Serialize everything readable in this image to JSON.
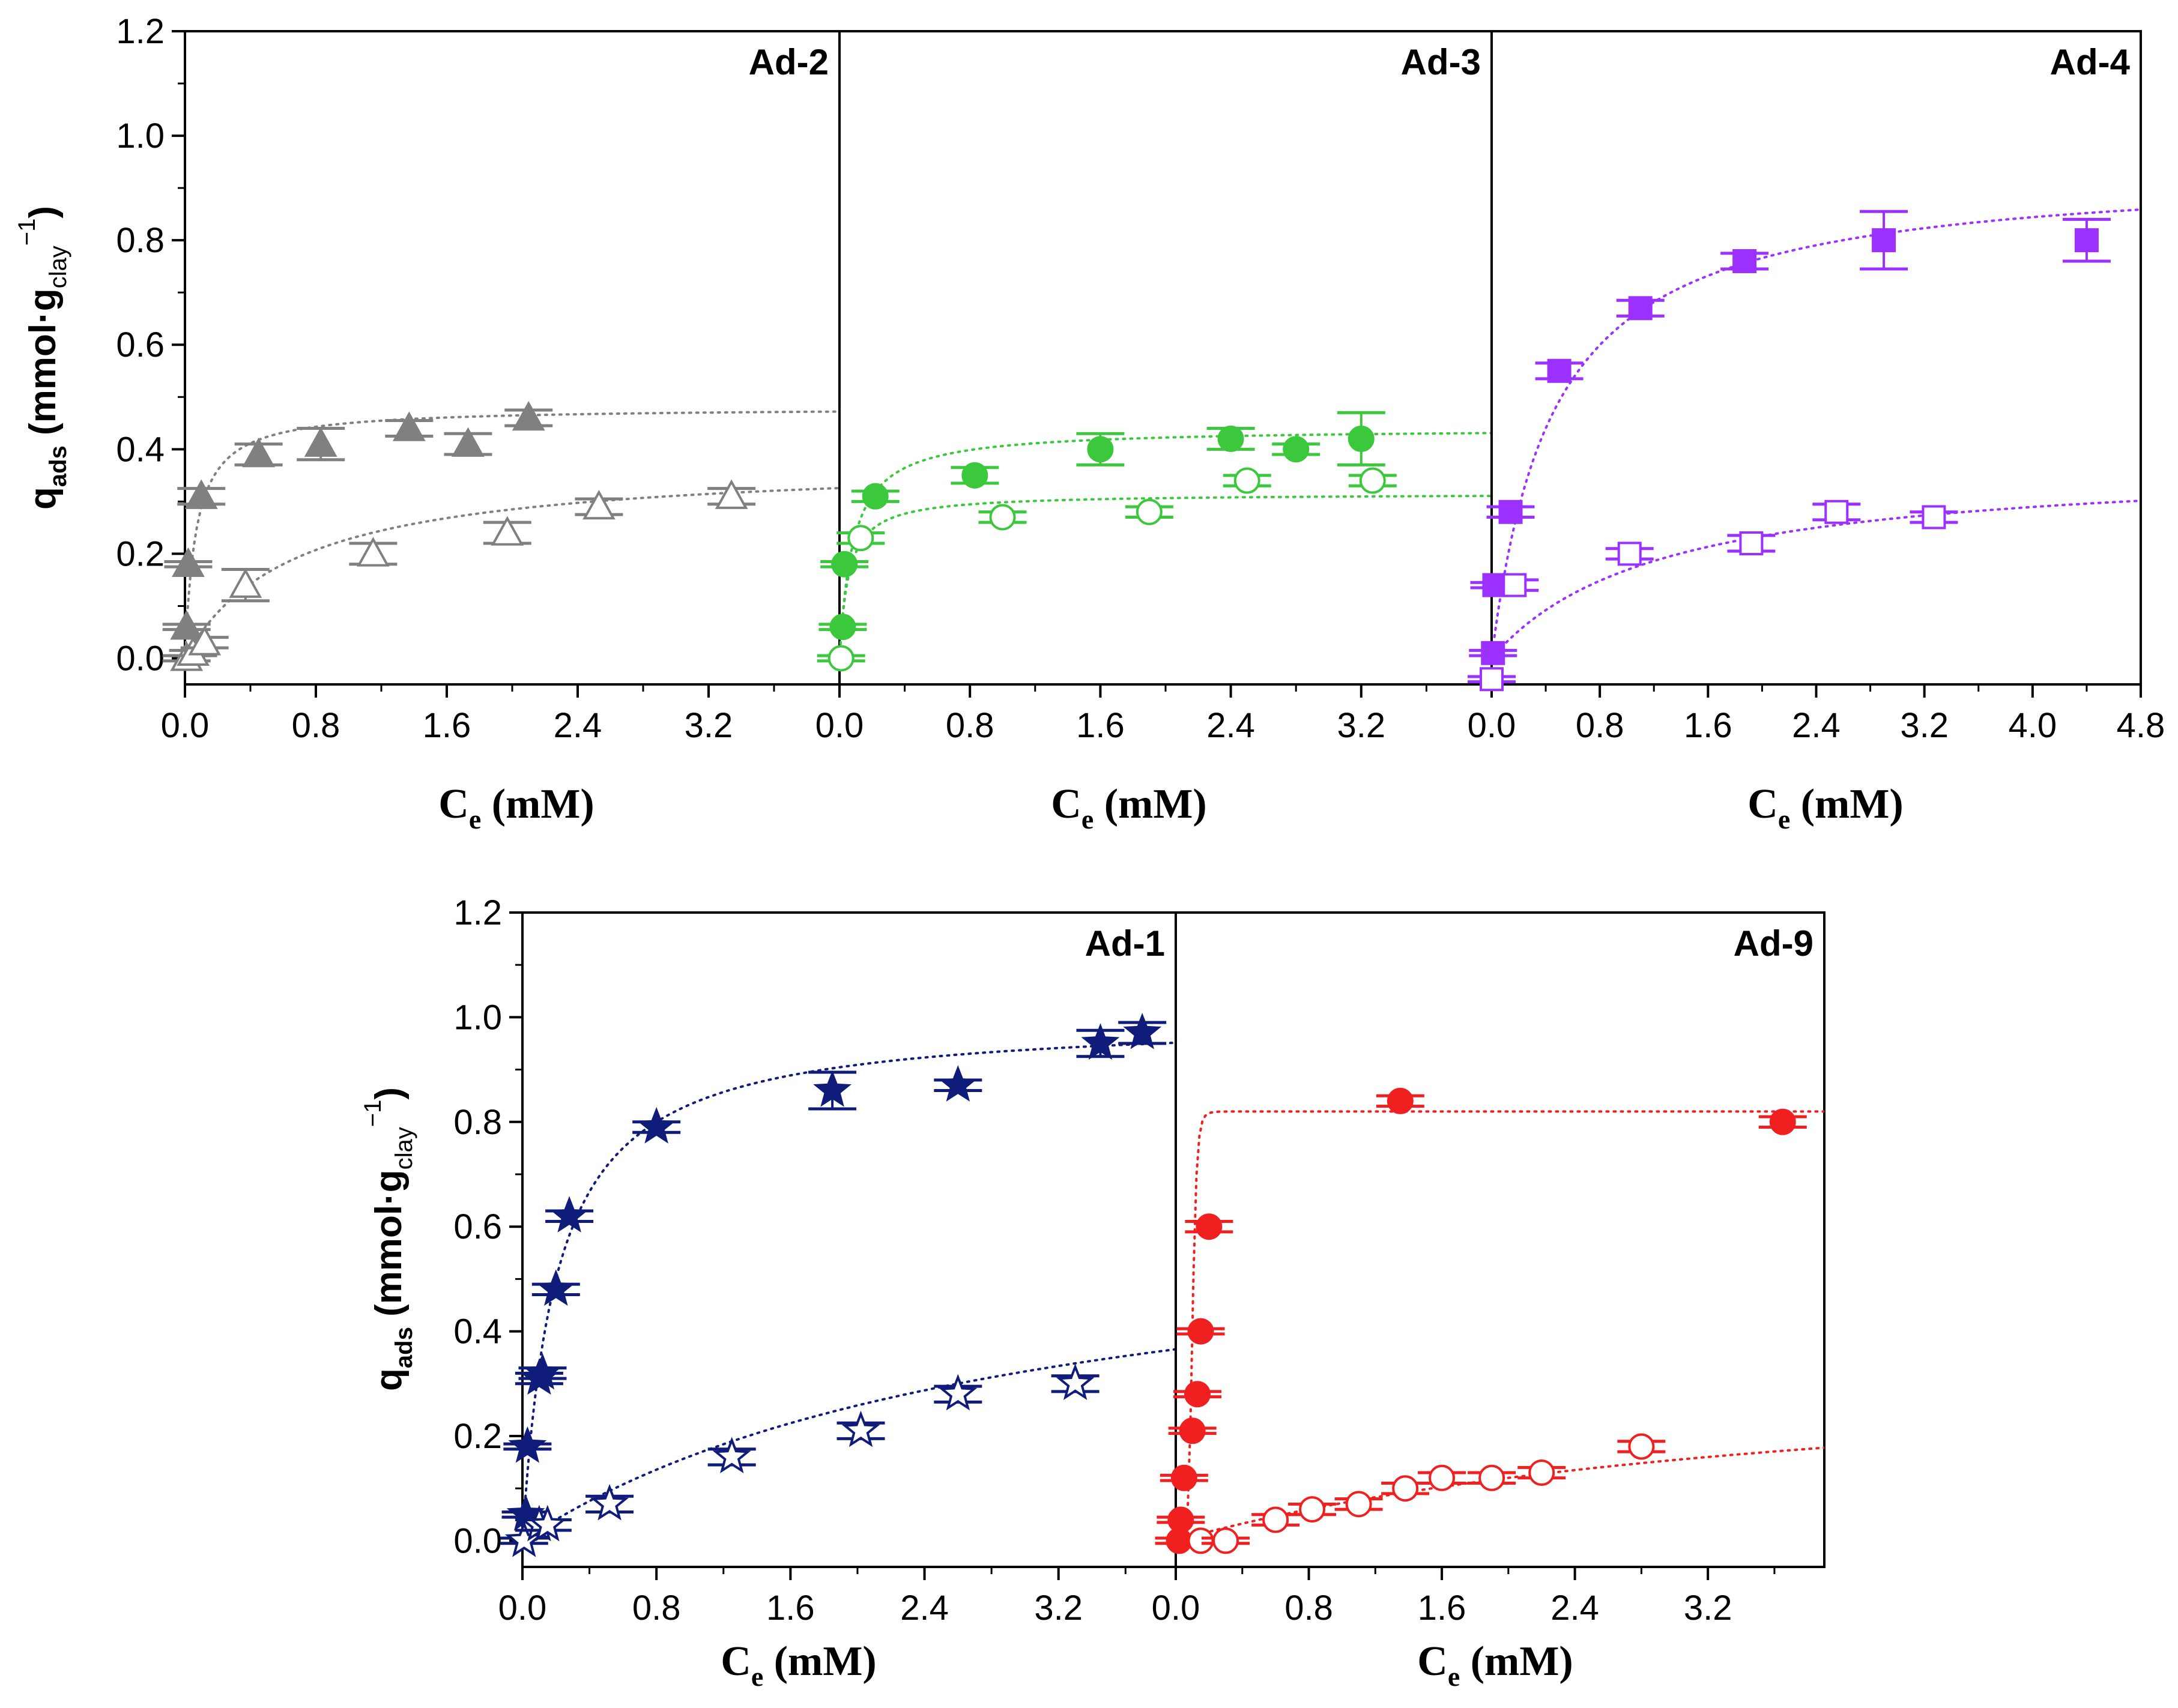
{
  "figure": {
    "y_axis_label": {
      "main": "q",
      "sub": "ads",
      "unit_prefix": " (mmol·g",
      "unit_sub": "clay",
      "unit_sup": "−1",
      "unit_suffix": ")"
    },
    "x_axis_label": {
      "main": "C",
      "sub": "e",
      "unit": " (mM)"
    }
  },
  "chart_data": [
    {
      "type": "scatter",
      "title": "Ad-2",
      "xlabel": "Ce (mM)",
      "ylabel": "qads (mmol·gclay−1)",
      "xlim": [
        0,
        4.0
      ],
      "ylim": [
        -0.05,
        1.2
      ],
      "x_ticks": [
        "0.0",
        "0.8",
        "1.6",
        "2.4",
        "3.2"
      ],
      "y_ticks": [
        "0.0",
        "0.2",
        "0.4",
        "0.6",
        "0.8",
        "1.0",
        "1.2"
      ],
      "color": "#808080",
      "marker": "triangle",
      "series": [
        {
          "fill": "filled",
          "fit": {
            "qmax": 0.48,
            "K": 15
          },
          "x": [
            0.01,
            0.02,
            0.1,
            0.45,
            0.83,
            1.37,
            1.73,
            2.1
          ],
          "y": [
            0.06,
            0.18,
            0.31,
            0.39,
            0.41,
            0.44,
            0.41,
            0.46
          ],
          "err_y": [
            0.005,
            0.005,
            0.015,
            0.02,
            0.03,
            0.015,
            0.02,
            0.015
          ]
        },
        {
          "fill": "open",
          "fit": {
            "qmax": 0.38,
            "K": 1.5
          },
          "x": [
            0.01,
            0.05,
            0.12,
            0.37,
            1.15,
            1.97,
            2.53,
            3.34
          ],
          "y": [
            0.0,
            0.01,
            0.03,
            0.14,
            0.2,
            0.24,
            0.29,
            0.31
          ],
          "err_y": [
            0.005,
            0.005,
            0.01,
            0.03,
            0.02,
            0.02,
            0.015,
            0.015
          ]
        }
      ]
    },
    {
      "type": "scatter",
      "title": "Ad-3",
      "xlabel": "Ce (mM)",
      "ylabel": "qads (mmol·gclay−1)",
      "xlim": [
        0,
        4.0
      ],
      "ylim": [
        -0.05,
        1.2
      ],
      "x_ticks": [
        "0.0",
        "0.8",
        "1.6",
        "2.4",
        "3.2"
      ],
      "color": "#3CC83C",
      "marker": "circle",
      "series": [
        {
          "fill": "filled",
          "fit": {
            "qmax": 0.44,
            "K": 12
          },
          "x": [
            0.02,
            0.03,
            0.22,
            0.83,
            1.6,
            2.4,
            2.8,
            3.2
          ],
          "y": [
            0.06,
            0.18,
            0.31,
            0.35,
            0.4,
            0.42,
            0.4,
            0.42
          ],
          "err_y": [
            0.005,
            0.005,
            0.01,
            0.015,
            0.03,
            0.02,
            0.01,
            0.05
          ]
        },
        {
          "fill": "open",
          "fit": {
            "qmax": 0.315,
            "K": 18
          },
          "x": [
            0.01,
            0.13,
            1.0,
            1.9,
            2.5,
            3.27
          ],
          "y": [
            0.0,
            0.23,
            0.27,
            0.28,
            0.34,
            0.34
          ],
          "err_y": [
            0.005,
            0.01,
            0.01,
            0.01,
            0.01,
            0.01
          ]
        }
      ]
    },
    {
      "type": "scatter",
      "title": "Ad-4",
      "xlabel": "Ce (mM)",
      "ylabel": "qads (mmol·gclay−1)",
      "xlim": [
        0,
        4.8
      ],
      "ylim": [
        -0.05,
        1.2
      ],
      "x_ticks": [
        "0.0",
        "0.8",
        "1.6",
        "2.4",
        "3.2",
        "4.0",
        "4.8"
      ],
      "color": "#9B30FF",
      "marker": "square",
      "series": [
        {
          "fill": "filled",
          "fit": {
            "qmax": 0.94,
            "K": 2.2
          },
          "x": [
            0.01,
            0.02,
            0.14,
            0.5,
            1.1,
            1.87,
            2.9,
            4.4
          ],
          "y": [
            0.01,
            0.14,
            0.28,
            0.55,
            0.67,
            0.76,
            0.8,
            0.8
          ],
          "err_y": [
            0.005,
            0.005,
            0.01,
            0.015,
            0.015,
            0.015,
            0.055,
            0.04
          ]
        },
        {
          "fill": "open",
          "fit": {
            "qmax": 0.38,
            "K": 0.8
          },
          "x": [
            0.0,
            0.17,
            1.02,
            1.92,
            2.55,
            3.27
          ],
          "y": [
            -0.04,
            0.14,
            0.2,
            0.22,
            0.28,
            0.27
          ],
          "err_y": [
            0.005,
            0.01,
            0.01,
            0.015,
            0.015,
            0.01
          ]
        }
      ]
    },
    {
      "type": "scatter",
      "title": "Ad-1",
      "xlabel": "Ce (mM)",
      "ylabel": "qads (mmol·gclay−1)",
      "xlim": [
        0,
        3.9
      ],
      "ylim": [
        -0.05,
        1.2
      ],
      "x_ticks": [
        "0.0",
        "0.8",
        "1.6",
        "2.4",
        "3.2"
      ],
      "y_ticks": [
        "0.0",
        "0.2",
        "0.4",
        "0.6",
        "0.8",
        "1.0",
        "1.2"
      ],
      "color": "#101C7A",
      "marker": "star",
      "series": [
        {
          "fill": "filled",
          "fit": {
            "qmax": 1.0,
            "K": 5
          },
          "x": [
            0.02,
            0.03,
            0.1,
            0.12,
            0.2,
            0.28,
            0.8,
            1.85,
            2.6,
            3.45,
            3.7
          ],
          "y": [
            0.05,
            0.18,
            0.31,
            0.32,
            0.48,
            0.62,
            0.79,
            0.86,
            0.87,
            0.95,
            0.97
          ],
          "err_y": [
            0.005,
            0.005,
            0.01,
            0.01,
            0.01,
            0.01,
            0.01,
            0.035,
            0.01,
            0.025,
            0.02
          ]
        },
        {
          "fill": "open",
          "fit": {
            "qmax": 0.65,
            "K": 0.33
          },
          "x": [
            0.01,
            0.1,
            0.15,
            0.52,
            1.25,
            2.02,
            2.6,
            3.3
          ],
          "y": [
            0.0,
            0.03,
            0.03,
            0.07,
            0.16,
            0.21,
            0.28,
            0.3
          ],
          "err_y": [
            0.005,
            0.01,
            0.01,
            0.015,
            0.015,
            0.015,
            0.015,
            0.015
          ]
        }
      ]
    },
    {
      "type": "scatter",
      "title": "Ad-9",
      "xlabel": "Ce (mM)",
      "ylabel": "qads (mmol·gclay−1)",
      "xlim": [
        0,
        3.9
      ],
      "ylim": [
        -0.05,
        1.2
      ],
      "x_ticks": [
        "0.0",
        "0.8",
        "1.6",
        "2.4",
        "3.2"
      ],
      "color": "#F02020",
      "marker": "circle",
      "series": [
        {
          "fill": "filled",
          "fit": {
            "qmax": 0.82,
            "K": 10,
            "n": 8
          },
          "x": [
            0.02,
            0.03,
            0.05,
            0.1,
            0.13,
            0.15,
            0.2,
            1.35,
            3.65
          ],
          "y": [
            0.0,
            0.04,
            0.12,
            0.21,
            0.28,
            0.4,
            0.6,
            0.84,
            0.8
          ],
          "err_y": [
            0.005,
            0.005,
            0.005,
            0.005,
            0.005,
            0.005,
            0.01,
            0.01,
            0.01
          ]
        },
        {
          "fill": "open",
          "fit": {
            "qmax": 0.36,
            "K": 0.25
          },
          "x": [
            0.15,
            0.3,
            0.6,
            0.82,
            1.1,
            1.38,
            1.6,
            1.9,
            2.2,
            2.8
          ],
          "y": [
            0.0,
            0.0,
            0.04,
            0.06,
            0.07,
            0.1,
            0.12,
            0.12,
            0.13,
            0.18
          ],
          "err_y": [
            0.005,
            0.005,
            0.01,
            0.01,
            0.01,
            0.01,
            0.01,
            0.01,
            0.01,
            0.01
          ]
        }
      ]
    }
  ]
}
